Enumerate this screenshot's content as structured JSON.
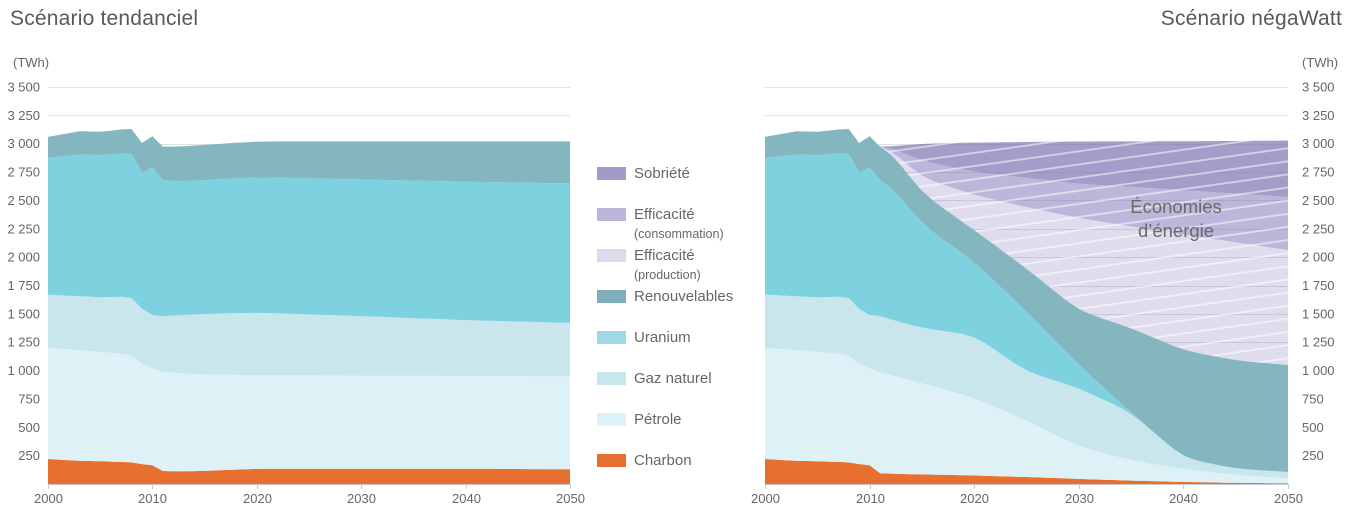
{
  "chart_data": [
    {
      "type": "area",
      "id": "tendanciel",
      "title": "Scénario tendanciel",
      "unit_label": "(TWh)",
      "xlim": [
        2000,
        2050
      ],
      "ylim": [
        0,
        3500
      ],
      "grid": true,
      "x_ticks": [
        "2000",
        "2010",
        "2020",
        "2030",
        "2040",
        "2050"
      ],
      "x_tick_values": [
        2000,
        2010,
        2020,
        2030,
        2040,
        2050
      ],
      "y_ticks": [
        {
          "v": 250,
          "label": "250"
        },
        {
          "v": 500,
          "label": "500"
        },
        {
          "v": 750,
          "label": "750"
        },
        {
          "v": 1000,
          "label": "1 000"
        },
        {
          "v": 1250,
          "label": "1 250"
        },
        {
          "v": 1500,
          "label": "1 500"
        },
        {
          "v": 1750,
          "label": "1 750"
        },
        {
          "v": 2000,
          "label": "2 000"
        },
        {
          "v": 2250,
          "label": "2 250"
        },
        {
          "v": 2500,
          "label": "2 500"
        },
        {
          "v": 2750,
          "label": "2 750"
        },
        {
          "v": 3000,
          "label": "3 000"
        },
        {
          "v": 3250,
          "label": "3 250"
        },
        {
          "v": 3500,
          "label": "3 500"
        }
      ],
      "y_axis_side": "left",
      "years": [
        2000,
        2003,
        2005,
        2007,
        2008,
        2009,
        2010,
        2011,
        2012,
        2015,
        2020,
        2025,
        2030,
        2035,
        2040,
        2045,
        2050
      ],
      "series": [
        {
          "name": "Charbon",
          "key": "charbon",
          "color": "#e7702f",
          "hatch": false,
          "values": [
            220,
            205,
            200,
            195,
            190,
            175,
            165,
            115,
            110,
            115,
            135,
            135,
            135,
            135,
            135,
            132,
            130
          ]
        },
        {
          "name": "Pétrole",
          "key": "petrole",
          "color": "#def1f6",
          "hatch": false,
          "values": [
            980,
            975,
            965,
            955,
            940,
            885,
            855,
            875,
            870,
            850,
            825,
            823,
            820,
            819,
            818,
            819,
            820
          ]
        },
        {
          "name": "Gaz naturel",
          "key": "gaz-naturel",
          "color": "#c8e6ec",
          "hatch": false,
          "values": [
            470,
            475,
            480,
            500,
            510,
            485,
            470,
            490,
            505,
            535,
            550,
            537,
            525,
            508,
            492,
            481,
            470
          ]
        },
        {
          "name": "Uranium",
          "key": "uranium",
          "color": "#7ed2e0",
          "hatch": false,
          "values": [
            1205,
            1250,
            1255,
            1265,
            1270,
            1200,
            1300,
            1200,
            1180,
            1180,
            1195,
            1200,
            1205,
            1213,
            1220,
            1225,
            1230
          ]
        },
        {
          "name": "Renouvelables",
          "key": "renouvelables",
          "color": "#84b6c0",
          "hatch": false,
          "values": [
            185,
            205,
            205,
            210,
            220,
            261,
            275,
            295,
            305,
            310,
            315,
            325,
            335,
            345,
            355,
            363,
            370
          ]
        }
      ]
    },
    {
      "type": "area",
      "id": "negawatt",
      "title": "Scénario négaWatt",
      "unit_label": "(TWh)",
      "xlim": [
        2000,
        2050
      ],
      "ylim": [
        0,
        3500
      ],
      "grid": true,
      "x_ticks": [
        "2000",
        "2010",
        "2020",
        "2030",
        "2040",
        "2050"
      ],
      "x_tick_values": [
        2000,
        2010,
        2020,
        2030,
        2040,
        2050
      ],
      "y_ticks": [
        {
          "v": 250,
          "label": "250"
        },
        {
          "v": 500,
          "label": "500"
        },
        {
          "v": 750,
          "label": "750"
        },
        {
          "v": 1000,
          "label": "1 000"
        },
        {
          "v": 1250,
          "label": "1 250"
        },
        {
          "v": 1500,
          "label": "1 500"
        },
        {
          "v": 1750,
          "label": "1 750"
        },
        {
          "v": 2000,
          "label": "2 000"
        },
        {
          "v": 2250,
          "label": "2 250"
        },
        {
          "v": 2500,
          "label": "2 500"
        },
        {
          "v": 2750,
          "label": "2 750"
        },
        {
          "v": 3000,
          "label": "3 000"
        },
        {
          "v": 3250,
          "label": "3 250"
        },
        {
          "v": 3500,
          "label": "3 500"
        }
      ],
      "y_axis_side": "right",
      "annotation": {
        "lines": [
          "Économies",
          "d’énergie"
        ]
      },
      "years": [
        2000,
        2003,
        2005,
        2007,
        2008,
        2009,
        2010,
        2011,
        2012,
        2015,
        2020,
        2025,
        2030,
        2035,
        2040,
        2045,
        2050
      ],
      "series": [
        {
          "name": "Charbon",
          "key": "charbon",
          "color": "#e7702f",
          "hatch": false,
          "values": [
            220,
            205,
            200,
            195,
            190,
            175,
            165,
            95,
            90,
            85,
            75,
            62,
            45,
            30,
            18,
            10,
            6
          ]
        },
        {
          "name": "Pétrole",
          "key": "petrole",
          "color": "#def1f6",
          "hatch": false,
          "values": [
            980,
            975,
            965,
            955,
            940,
            885,
            855,
            890,
            870,
            805,
            685,
            498,
            285,
            180,
            112,
            70,
            44
          ]
        },
        {
          "name": "Gaz naturel",
          "key": "gaz-naturel",
          "color": "#c8e6ec",
          "hatch": false,
          "values": [
            470,
            475,
            480,
            500,
            510,
            485,
            470,
            495,
            490,
            485,
            550,
            430,
            515,
            420,
            100,
            55,
            56
          ]
        },
        {
          "name": "Uranium",
          "key": "uranium",
          "color": "#7ed2e0",
          "hatch": false,
          "values": [
            1205,
            1250,
            1255,
            1265,
            1270,
            1200,
            1300,
            1200,
            1190,
            915,
            650,
            530,
            205,
            0,
            0,
            0,
            0
          ]
        },
        {
          "name": "Renouvelables",
          "key": "renouvelables",
          "color": "#84b6c0",
          "hatch": false,
          "values": [
            185,
            205,
            205,
            210,
            220,
            261,
            275,
            295,
            300,
            275,
            280,
            380,
            480,
            745,
            950,
            955,
            944
          ]
        },
        {
          "name": "Efficacité (production)",
          "key": "efficacite-production",
          "color": "#dfdcee",
          "hatch": true,
          "values": [
            0,
            0,
            0,
            0,
            0,
            0,
            0,
            0,
            15,
            135,
            308,
            540,
            815,
            895,
            1020,
            1040,
            1013
          ]
        },
        {
          "name": "Efficacité (consommation)",
          "key": "efficacite-consommation",
          "color": "#bdb6db",
          "hatch": true,
          "values": [
            0,
            0,
            0,
            0,
            0,
            0,
            0,
            0,
            10,
            150,
            203,
            260,
            300,
            350,
            390,
            430,
            467
          ]
        },
        {
          "name": "Sobriété",
          "key": "sobriete",
          "color": "#a39dca",
          "hatch": true,
          "values": [
            0,
            0,
            0,
            0,
            0,
            0,
            0,
            0,
            10,
            150,
            259,
            315,
            375,
            400,
            432,
            464,
            498
          ]
        }
      ]
    }
  ],
  "legend": {
    "items": [
      {
        "key": "sobriete",
        "label": "Sobriété",
        "sublabel": "",
        "color": "#a19bc9"
      },
      {
        "key": "efficacite-consommation",
        "label": "Efficacité",
        "sublabel": "(consommation)",
        "color": "#bcb5da"
      },
      {
        "key": "efficacite-production",
        "label": "Efficacité",
        "sublabel": "(production)",
        "color": "#ddd9ec"
      },
      {
        "key": "renouvelables",
        "label": "Renouvelables",
        "sublabel": "",
        "color": "#7eafb9"
      },
      {
        "key": "uranium",
        "label": "Uranium",
        "sublabel": "",
        "color": "#9edae5"
      },
      {
        "key": "gaz-naturel",
        "label": "Gaz naturel",
        "sublabel": "",
        "color": "#c8e6ec"
      },
      {
        "key": "petrole",
        "label": "Pétrole",
        "sublabel": "",
        "color": "#def1f6"
      },
      {
        "key": "charbon",
        "label": "Charbon",
        "sublabel": "",
        "color": "#e7702f"
      }
    ]
  }
}
